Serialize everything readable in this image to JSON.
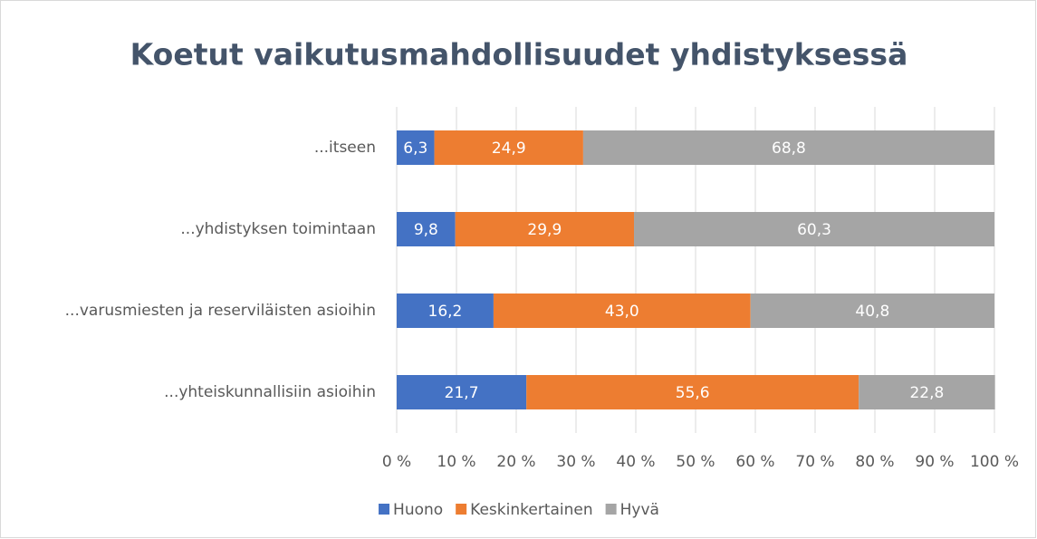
{
  "chart_data": {
    "type": "stacked_barh",
    "title": "Koetut vaikutusmahdollisuudet yhdistyksessä",
    "categories": [
      "...itseen",
      "...yhdistyksen toimintaan",
      "...varusmiesten ja reserviläisten asioihin",
      "...yhteiskunnallisiin asioihin"
    ],
    "series": [
      {
        "name": "Huono",
        "color": "#4472c4",
        "values": [
          6.3,
          9.8,
          16.2,
          21.7
        ],
        "value_labels": [
          "6,3",
          "9,8",
          "16,2",
          "21,7"
        ]
      },
      {
        "name": "Keskinkertainen",
        "color": "#ed7d31",
        "values": [
          24.9,
          29.9,
          43.0,
          55.6
        ],
        "value_labels": [
          "24,9",
          "29,9",
          "43,0",
          "55,6"
        ]
      },
      {
        "name": "Hyvä",
        "color": "#a5a5a5",
        "values": [
          68.8,
          60.3,
          40.8,
          22.8
        ],
        "value_labels": [
          "68,8",
          "60,3",
          "40,8",
          "22,8"
        ]
      }
    ],
    "xlim": [
      0,
      100
    ],
    "xticks": [
      {
        "value": 0,
        "label": "0 %"
      },
      {
        "value": 10,
        "label": "10 %"
      },
      {
        "value": 20,
        "label": "20 %"
      },
      {
        "value": 30,
        "label": "30 %"
      },
      {
        "value": 40,
        "label": "40 %"
      },
      {
        "value": 50,
        "label": "50 %"
      },
      {
        "value": 60,
        "label": "60 %"
      },
      {
        "value": 70,
        "label": "70 %"
      },
      {
        "value": 80,
        "label": "80 %"
      },
      {
        "value": 90,
        "label": "90 %"
      },
      {
        "value": 100,
        "label": "100 %"
      }
    ],
    "grid": true,
    "legend": "bottom"
  }
}
